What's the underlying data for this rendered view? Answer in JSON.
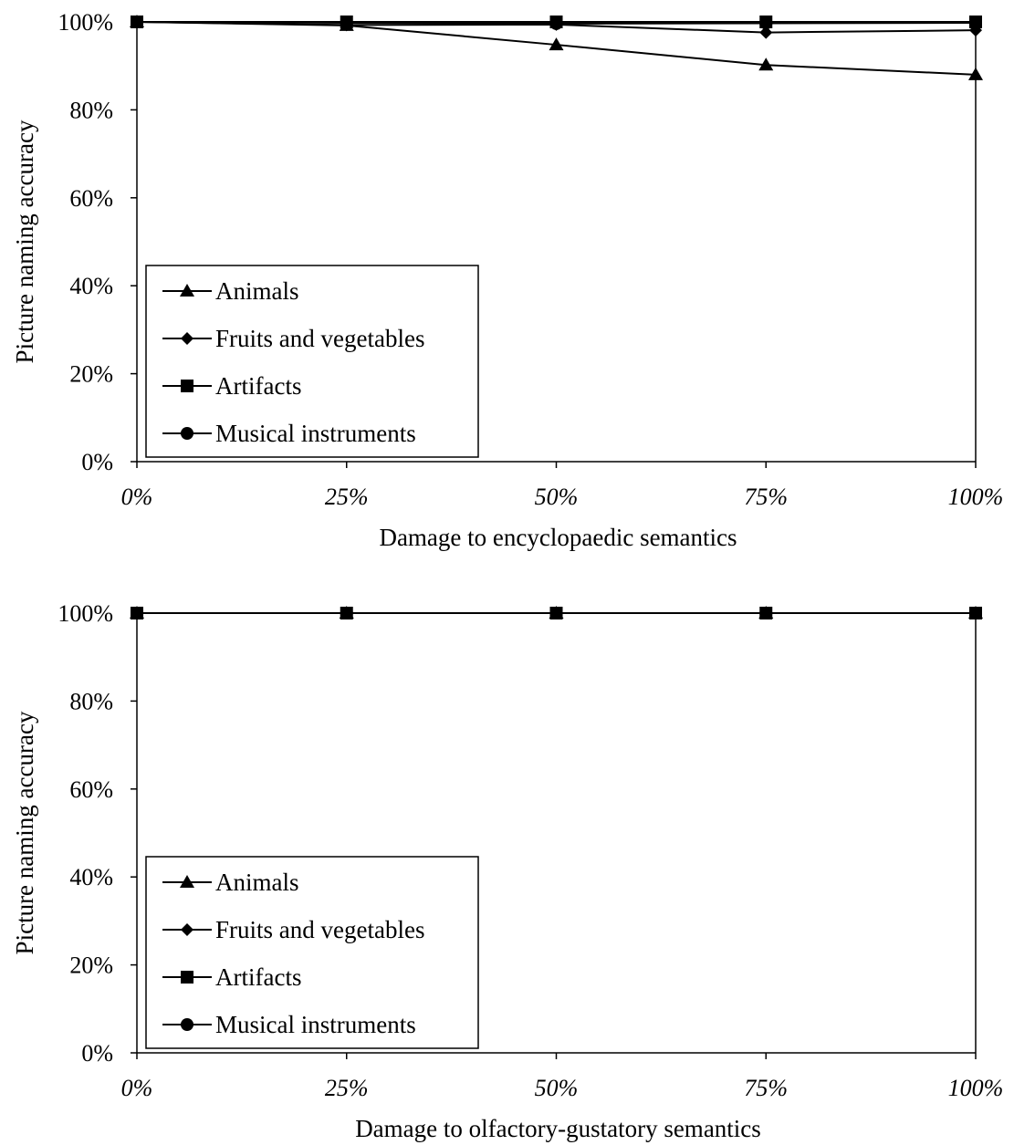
{
  "chart_data": [
    {
      "type": "line",
      "x": [
        0,
        25,
        50,
        75,
        100
      ],
      "x_tick_labels": [
        "0%",
        "25%",
        "50%",
        "75%",
        "100%"
      ],
      "y_tick_labels": [
        "0%",
        "20%",
        "40%",
        "60%",
        "80%",
        "100%"
      ],
      "ylim": [
        0,
        100
      ],
      "xlim": [
        0,
        100
      ],
      "xlabel": "Damage to encyclopaedic semantics",
      "ylabel": "Picture naming accuracy",
      "grid": false,
      "legend_position": "bottom-left",
      "series": [
        {
          "name": "Animals",
          "marker": "triangle",
          "values": [
            100,
            99.2,
            94.8,
            90.2,
            88.0
          ]
        },
        {
          "name": "Fruits and vegetables",
          "marker": "diamond",
          "values": [
            100,
            99.3,
            99.4,
            97.6,
            98.1
          ]
        },
        {
          "name": "Artifacts",
          "marker": "square",
          "values": [
            100,
            100,
            100,
            100,
            100
          ]
        },
        {
          "name": "Musical instruments",
          "marker": "circle",
          "values": [
            100,
            99.8,
            99.6,
            99.7,
            99.8
          ]
        }
      ]
    },
    {
      "type": "line",
      "x": [
        0,
        25,
        50,
        75,
        100
      ],
      "x_tick_labels": [
        "0%",
        "25%",
        "50%",
        "75%",
        "100%"
      ],
      "y_tick_labels": [
        "0%",
        "20%",
        "40%",
        "60%",
        "80%",
        "100%"
      ],
      "ylim": [
        0,
        100
      ],
      "xlim": [
        0,
        100
      ],
      "xlabel": "Damage to olfactory-gustatory semantics",
      "ylabel": "Picture naming accuracy",
      "grid": false,
      "legend_position": "bottom-left",
      "series": [
        {
          "name": "Animals",
          "marker": "triangle",
          "values": [
            100,
            100,
            100,
            100,
            100
          ]
        },
        {
          "name": "Fruits and vegetables",
          "marker": "diamond",
          "values": [
            100,
            100,
            100,
            100,
            100
          ]
        },
        {
          "name": "Artifacts",
          "marker": "square",
          "values": [
            100,
            100,
            100,
            100,
            100
          ]
        },
        {
          "name": "Musical instruments",
          "marker": "circle",
          "values": [
            100,
            100,
            100,
            100,
            100
          ]
        }
      ]
    }
  ],
  "colors": {
    "ink": "#000000",
    "background": "#ffffff"
  }
}
